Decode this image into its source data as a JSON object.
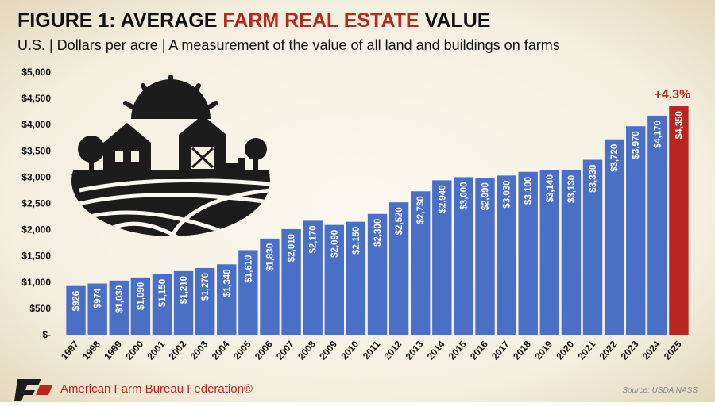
{
  "chart_data": {
    "type": "bar",
    "title_parts": [
      "FIGURE 1: AVERAGE",
      "FARM REAL ESTATE",
      "VALUE"
    ],
    "subtitle": "U.S. | Dollars per acre | A measurement of the value of all land and buildings on farms",
    "annotation": "+4.3%",
    "organization": "American Farm Bureau Federation®",
    "source": "Source: USDA NASS",
    "categories": [
      "1997",
      "1998",
      "1999",
      "2000",
      "2001",
      "2002",
      "2003",
      "2004",
      "2005",
      "2006",
      "2007",
      "2008",
      "2009",
      "2010",
      "2011",
      "2012",
      "2013",
      "2014",
      "2015",
      "2016",
      "2017",
      "2018",
      "2019",
      "2020",
      "2021",
      "2022",
      "2023",
      "2024",
      "2025"
    ],
    "values": [
      926,
      974,
      1030,
      1090,
      1150,
      1210,
      1270,
      1340,
      1610,
      1830,
      2010,
      2170,
      2090,
      2150,
      2300,
      2520,
      2730,
      2940,
      3000,
      2990,
      3030,
      3100,
      3140,
      3130,
      3330,
      3720,
      3970,
      4170,
      4350
    ],
    "value_labels": [
      "$926",
      "$974",
      "$1,030",
      "$1,090",
      "$1,150",
      "$1,210",
      "$1,270",
      "$1,340",
      "$1,610",
      "$1,830",
      "$2,010",
      "$2,170",
      "$2,090",
      "$2,150",
      "$2,300",
      "$2,520",
      "$2,730",
      "$2,940",
      "$3,000",
      "$2,990",
      "$3,030",
      "$3,100",
      "$3,140",
      "$3,130",
      "$3,330",
      "$3,720",
      "$3,970",
      "$4,170",
      "$4,350"
    ],
    "colors": [
      "#4a6fc7",
      "#4a6fc7",
      "#4a6fc7",
      "#4a6fc7",
      "#4a6fc7",
      "#4a6fc7",
      "#4a6fc7",
      "#4a6fc7",
      "#4a6fc7",
      "#4a6fc7",
      "#4a6fc7",
      "#4a6fc7",
      "#4a6fc7",
      "#4a6fc7",
      "#4a6fc7",
      "#4a6fc7",
      "#4a6fc7",
      "#4a6fc7",
      "#4a6fc7",
      "#4a6fc7",
      "#4a6fc7",
      "#4a6fc7",
      "#4a6fc7",
      "#4a6fc7",
      "#4a6fc7",
      "#4a6fc7",
      "#4a6fc7",
      "#4a6fc7",
      "#b7271f"
    ],
    "ylim": [
      0,
      5000
    ],
    "yticks": [
      {
        "value": 0,
        "label": "$-"
      },
      {
        "value": 500,
        "label": "$500"
      },
      {
        "value": 1000,
        "label": "$1,000"
      },
      {
        "value": 1500,
        "label": "$1,500"
      },
      {
        "value": 2000,
        "label": "$2,000"
      },
      {
        "value": 2500,
        "label": "$2,500"
      },
      {
        "value": 3000,
        "label": "$3,000"
      },
      {
        "value": 3500,
        "label": "$3,500"
      },
      {
        "value": 4000,
        "label": "$4,000"
      },
      {
        "value": 4500,
        "label": "$4,500"
      },
      {
        "value": 5000,
        "label": "$5,000"
      }
    ],
    "grid": false
  }
}
